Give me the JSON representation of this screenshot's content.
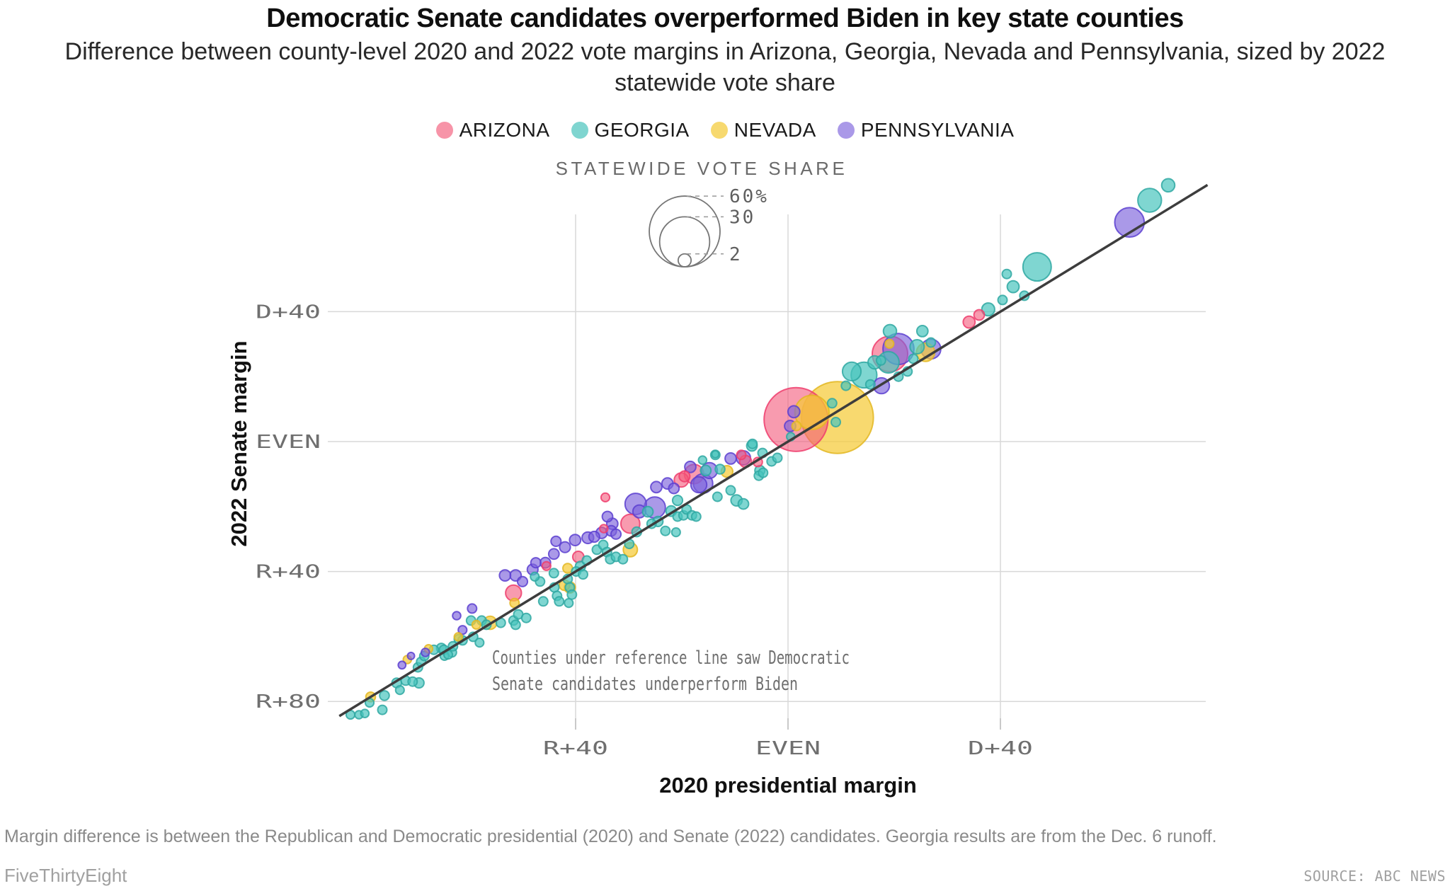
{
  "header": {
    "title": "Democratic Senate candidates overperformed Biden in key state counties",
    "subtitle": "Difference between county-level 2020 and 2022 vote margins in Arizona, Georgia, Nevada and Pennsylvania, sized by 2022 statewide vote share"
  },
  "footer": {
    "note": "Margin difference is between the Republican and Democratic presidential (2020) and Senate (2022) candidates. Georgia results are from the Dec. 6 runoff.",
    "credit": "FiveThirtyEight",
    "source": "SOURCE: ABC NEWS"
  },
  "chart_data": {
    "type": "scatter",
    "title": "Democratic Senate candidates overperformed Biden in key state counties",
    "xlabel": "2020 presidential margin",
    "ylabel": "2022 Senate margin",
    "x_axis": {
      "label": "2020 presidential margin",
      "range": [
        -88,
        82
      ],
      "ticks": [
        {
          "value": -40,
          "label": "R+40"
        },
        {
          "value": 0,
          "label": "EVEN"
        },
        {
          "value": 40,
          "label": "D+40"
        }
      ]
    },
    "y_axis": {
      "label": "2022 Senate margin",
      "range": [
        -88,
        82
      ],
      "ticks": [
        {
          "value": 40,
          "label": "D+40"
        },
        {
          "value": 0,
          "label": "EVEN"
        },
        {
          "value": -40,
          "label": "R+40"
        },
        {
          "value": -80,
          "label": "R+80"
        }
      ]
    },
    "reference_line": {
      "type": "y-equals-x",
      "start": -84.5,
      "end": 79,
      "color": "#3d3d3d"
    },
    "annotation": {
      "lines": [
        "Counties under reference line saw Democratic",
        "Senate candidates underperform Biden"
      ]
    },
    "size_legend": {
      "title": "STATEWIDE VOTE SHARE",
      "entries": [
        {
          "label": "60%",
          "value": 60
        },
        {
          "label": "30",
          "value": 30
        },
        {
          "label": "2",
          "value": 2
        }
      ]
    },
    "legend_position": "top-center",
    "grid": true,
    "point_format": [
      "presidential_margin_2020",
      "senate_margin_2022",
      "statewide_vote_share_pct"
    ],
    "series": [
      {
        "name": "ARIZONA",
        "fill": "#f4587a",
        "fill_opacity": 0.6,
        "stroke": "#ef3d6d",
        "legend_color": "#f794a8",
        "points": [
          [
            1.5,
            6.8,
            49
          ],
          [
            19.2,
            27,
            15
          ],
          [
            -17.7,
            -10,
            4.5
          ],
          [
            -29.7,
            -25.3,
            4.3
          ],
          [
            -51.7,
            -46.6,
            3
          ],
          [
            -39.5,
            -35.5,
            1.5
          ],
          [
            -34.4,
            -17.2,
            0.9
          ],
          [
            -20.1,
            -11.8,
            2.4
          ],
          [
            -19.5,
            -10.7,
            1.4
          ],
          [
            -8,
            -6.1,
            1.7
          ],
          [
            -8.8,
            -4.1,
            1
          ],
          [
            36,
            39,
            1.3
          ],
          [
            34.1,
            36.8,
            1.7
          ],
          [
            -5.7,
            -6.3,
            1
          ],
          [
            -34.7,
            -26.8,
            0.8
          ],
          [
            -45.5,
            -38.3,
            0.9
          ]
        ]
      },
      {
        "name": "GEORGIA",
        "fill": "#48c4bd",
        "fill_opacity": 0.7,
        "stroke": "#2fa8a2",
        "legend_color": "#7fd5d0",
        "points": [
          [
            -82.4,
            -84.1,
            0.9
          ],
          [
            -80.8,
            -84.1,
            0.8
          ],
          [
            -79.7,
            -83.7,
            0.8
          ],
          [
            -78.8,
            -80.4,
            0.9
          ],
          [
            -76.4,
            -82.6,
            1
          ],
          [
            -76,
            -78.2,
            1.1
          ],
          [
            -73.7,
            -74.3,
            1.1
          ],
          [
            -73.1,
            -76.5,
            0.9
          ],
          [
            -72,
            -73.6,
            1
          ],
          [
            -70.7,
            -73.9,
            1
          ],
          [
            -69.5,
            -74.3,
            1.2
          ],
          [
            -69.7,
            -69.5,
            1
          ],
          [
            -69.1,
            -67.8,
            1
          ],
          [
            -68.5,
            -66,
            1
          ],
          [
            -66.7,
            -64.1,
            1
          ],
          [
            -65.3,
            -63.6,
            1.1
          ],
          [
            -64.8,
            -64.1,
            1
          ],
          [
            -64.7,
            -66,
            0.9
          ],
          [
            -64,
            -65.6,
            0.9
          ],
          [
            -63.3,
            -64.9,
            1
          ],
          [
            -63.1,
            -63,
            1
          ],
          [
            -62,
            -60.8,
            1
          ],
          [
            -61.3,
            -61.2,
            1
          ],
          [
            -59.7,
            -55.1,
            1
          ],
          [
            -59.3,
            -60.1,
            1
          ],
          [
            -58.1,
            -61.9,
            0.9
          ],
          [
            -57.7,
            -55.1,
            1
          ],
          [
            -56.8,
            -56.4,
            1
          ],
          [
            -54.1,
            -55.8,
            1
          ],
          [
            -51.7,
            -55.1,
            1
          ],
          [
            -51.3,
            -56.4,
            1
          ],
          [
            -50.8,
            -53.2,
            1
          ],
          [
            -49.3,
            -54.3,
            1
          ],
          [
            -47.7,
            -41.6,
            0.9
          ],
          [
            -46.7,
            -43.1,
            1
          ],
          [
            -46.1,
            -49.2,
            1
          ],
          [
            -44.1,
            -40.5,
            1
          ],
          [
            -44,
            -44.9,
            1
          ],
          [
            -43.5,
            -47.5,
            1
          ],
          [
            -43.1,
            -49.2,
            1
          ],
          [
            -41.5,
            -42.3,
            1
          ],
          [
            -41.3,
            -49.7,
            0.9
          ],
          [
            -41.1,
            -44.9,
            1
          ],
          [
            -40.7,
            -47.1,
            1
          ],
          [
            -39.9,
            -40,
            1
          ],
          [
            -39.1,
            -38.4,
            1.2
          ],
          [
            -38.6,
            -40.9,
            1
          ],
          [
            -37.9,
            -36.6,
            1
          ],
          [
            -36,
            -33.3,
            1
          ],
          [
            -34.8,
            -31.8,
            1
          ],
          [
            -34.1,
            -34,
            1
          ],
          [
            -33.5,
            -36.2,
            1
          ],
          [
            -32.4,
            -35.5,
            1
          ],
          [
            -31.1,
            -36.2,
            1
          ],
          [
            -29.9,
            -31.5,
            1
          ],
          [
            -28.5,
            -27.8,
            1.1
          ],
          [
            -26.4,
            -21.6,
            1.3
          ],
          [
            -25.7,
            -25.3,
            1
          ],
          [
            -24.5,
            -24.6,
            1.2
          ],
          [
            -23.1,
            -27.5,
            1
          ],
          [
            -22,
            -21.4,
            1.3
          ],
          [
            -20.8,
            -23.1,
            1
          ],
          [
            -20.8,
            -18.1,
            1.2
          ],
          [
            -19.7,
            -22.7,
            1
          ],
          [
            -19.1,
            -20.9,
            1
          ],
          [
            -18.1,
            -22.7,
            1
          ],
          [
            -17.3,
            -23.1,
            1
          ],
          [
            -21.1,
            -27.9,
            0.9
          ],
          [
            -15.5,
            -8.9,
            1.3
          ],
          [
            -13.7,
            -4.1,
            1
          ],
          [
            -13.3,
            -17,
            1
          ],
          [
            -12.8,
            -8.5,
            1.1
          ],
          [
            -10.8,
            -15,
            1
          ],
          [
            -9.7,
            -18.1,
            1.5
          ],
          [
            -8.4,
            -19.2,
            1.3
          ],
          [
            -6.8,
            -1.3,
            1.3
          ],
          [
            -6.7,
            -0.7,
            1
          ],
          [
            -5.5,
            -10.5,
            1
          ],
          [
            -4.8,
            -3.5,
            1
          ],
          [
            -4.7,
            -9.6,
            1
          ],
          [
            -5.3,
            -8.9,
            1.2
          ],
          [
            -3.1,
            -6.1,
            1
          ],
          [
            -2,
            -5,
            1
          ],
          [
            -13.7,
            -3.9,
            0.6
          ],
          [
            -16.1,
            -5.7,
            0.8
          ],
          [
            0.5,
            1.5,
            0.8
          ],
          [
            8.3,
            11.8,
            1
          ],
          [
            9,
            6,
            1
          ],
          [
            10.9,
            17.2,
            1
          ],
          [
            12,
            21.6,
            4.1
          ],
          [
            14.3,
            20.5,
            8
          ],
          [
            15.5,
            17.6,
            1
          ],
          [
            16.3,
            24.4,
            2.1
          ],
          [
            17.5,
            25,
            1
          ],
          [
            18.9,
            24.4,
            5.5
          ],
          [
            19.2,
            34,
            2.1
          ],
          [
            20.8,
            20,
            1
          ],
          [
            22.5,
            21.6,
            1
          ],
          [
            23.6,
            25.5,
            1
          ],
          [
            24.3,
            29.2,
            2.4
          ],
          [
            25.3,
            34,
            1.5
          ],
          [
            26.9,
            30.5,
            1
          ],
          [
            37.7,
            40.7,
            2
          ],
          [
            40.4,
            43.6,
            1
          ],
          [
            41.2,
            51.6,
            1
          ],
          [
            42.4,
            47.7,
            1.7
          ],
          [
            44.5,
            44.9,
            1
          ],
          [
            46.9,
            53.8,
            9.6
          ],
          [
            68.1,
            74.3,
            6.7
          ],
          [
            71.6,
            78.9,
            2.1
          ]
        ]
      },
      {
        "name": "NEVADA",
        "fill": "#f5cb38",
        "fill_opacity": 0.72,
        "stroke": "#e3b723",
        "legend_color": "#f7d96f",
        "points": [
          [
            9.3,
            7.4,
            62
          ],
          [
            4.5,
            9,
            14
          ],
          [
            1.6,
            4.8,
            1
          ],
          [
            -11.5,
            -9.2,
            1.6
          ],
          [
            -29.7,
            -33.3,
            2.4
          ],
          [
            -41.5,
            -39,
            1.1
          ],
          [
            -41.1,
            -44.9,
            1.5
          ],
          [
            -42.1,
            -44.2,
            1.3
          ],
          [
            -51.5,
            -49.7,
            1
          ],
          [
            -56.1,
            -55.8,
            2.1
          ],
          [
            -58.7,
            -56.4,
            0.9
          ],
          [
            -62.1,
            -60.1,
            0.8
          ],
          [
            -67.7,
            -63.8,
            0.8
          ],
          [
            -71.7,
            -67.1,
            0.8
          ],
          [
            -78.6,
            -78.6,
            1.1
          ],
          [
            25.9,
            27.5,
            4
          ],
          [
            19.1,
            30.1,
            0.9
          ]
        ]
      },
      {
        "name": "PENNSYLVANIA",
        "fill": "#7c63dc",
        "fill_opacity": 0.65,
        "stroke": "#5c3fd0",
        "legend_color": "#aa99e8",
        "points": [
          [
            64.3,
            67.5,
            10.4
          ],
          [
            20.8,
            28.5,
            11.5
          ],
          [
            26.9,
            28.5,
            4.7
          ],
          [
            17.6,
            17.2,
            3
          ],
          [
            1.1,
            9.2,
            1.7
          ],
          [
            0.4,
            4.8,
            1.5
          ],
          [
            -8.4,
            -5,
            2.4
          ],
          [
            -10.8,
            -5.2,
            1.5
          ],
          [
            -14.8,
            -8.9,
            3
          ],
          [
            -16,
            -12.9,
            4.5
          ],
          [
            -16.8,
            -13.3,
            3
          ],
          [
            -18.4,
            -7.8,
            1.5
          ],
          [
            -22.7,
            -12.9,
            1.5
          ],
          [
            -21.5,
            -14.4,
            1.3
          ],
          [
            -24.8,
            -14,
            1.5
          ],
          [
            -25.1,
            -20.3,
            5.4
          ],
          [
            -28.7,
            -19.2,
            5.4
          ],
          [
            -33.1,
            -25.3,
            1.5
          ],
          [
            -33.3,
            -27.5,
            1.3
          ],
          [
            -34,
            -23.1,
            1.3
          ],
          [
            -32.4,
            -28.5,
            1.2
          ],
          [
            -35.1,
            -28.1,
            1.5
          ],
          [
            -36.5,
            -29.3,
            1.4
          ],
          [
            -37.7,
            -29.6,
            1.6
          ],
          [
            -40.1,
            -30.3,
            1.5
          ],
          [
            -42,
            -32.5,
            1.4
          ],
          [
            -43.7,
            -30.7,
            1.2
          ],
          [
            -44.1,
            -34.6,
            1.3
          ],
          [
            -47.5,
            -37.3,
            1.2
          ],
          [
            -48.1,
            -39.4,
            1.4
          ],
          [
            -45.7,
            -37.3,
            1.3
          ],
          [
            -50,
            -43.1,
            1.2
          ],
          [
            -51.3,
            -41.2,
            1.5
          ],
          [
            -53.3,
            -41.2,
            1.5
          ],
          [
            -59.5,
            -51.4,
            1
          ],
          [
            -61.3,
            -58,
            0.9
          ],
          [
            -62.4,
            -53.6,
            0.8
          ],
          [
            -68.3,
            -64.9,
            0.8
          ],
          [
            -72.7,
            -68.8,
            0.7
          ],
          [
            -71,
            -66,
            0.6
          ],
          [
            -28,
            -21.5,
            2
          ]
        ]
      }
    ]
  }
}
